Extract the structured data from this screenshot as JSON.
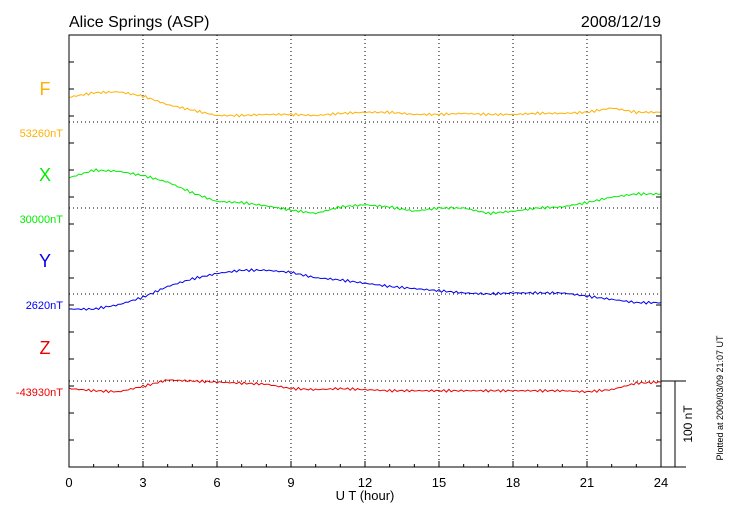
{
  "chart_data": {
    "type": "line",
    "title": "Alice Springs (ASP)",
    "date": "2008/12/19",
    "xlabel": "U T (hour)",
    "xlim": [
      0,
      24
    ],
    "xticks": [
      "0",
      "3",
      "6",
      "9",
      "12",
      "15",
      "18",
      "21",
      "24"
    ],
    "scale_bar_label": "100 nT",
    "scale_bar_nT": 100,
    "footer_note": "Plotted at 2009/03/09 21:07 UT",
    "panel_span_nT": 100,
    "x": [
      0,
      1,
      2,
      3,
      4,
      5,
      6,
      7,
      8,
      9,
      10,
      11,
      12,
      13,
      14,
      15,
      16,
      17,
      18,
      19,
      20,
      21,
      22,
      23,
      24
    ],
    "series": [
      {
        "name": "F",
        "baseline_label": "53260nT",
        "baseline_nT": 53260,
        "color": "#ffb000",
        "offset_nT": [
          23,
          27,
          28,
          24,
          16,
          11,
          6,
          6,
          7,
          7,
          6,
          8,
          9,
          9,
          7,
          7,
          8,
          7,
          7,
          8,
          8,
          9,
          13,
          9,
          9
        ]
      },
      {
        "name": "X",
        "baseline_label": "30000nT",
        "baseline_nT": 30000,
        "color": "#00ee00",
        "offset_nT": [
          28,
          35,
          34,
          30,
          24,
          14,
          6,
          5,
          2,
          -2,
          -5,
          1,
          3,
          1,
          -3,
          0,
          0,
          -5,
          -3,
          0,
          1,
          5,
          10,
          13,
          13
        ]
      },
      {
        "name": "Y",
        "baseline_label": "2620nT",
        "baseline_nT": 2620,
        "color": "#0000ee",
        "offset_nT": [
          -14,
          -14,
          -10,
          -3,
          7,
          14,
          19,
          22,
          22,
          20,
          15,
          13,
          10,
          7,
          5,
          3,
          1,
          0,
          1,
          1,
          1,
          -2,
          -5,
          -8,
          -8
        ]
      },
      {
        "name": "Z",
        "baseline_label": "-43930nT",
        "baseline_nT": -43930,
        "color": "#ee0000",
        "offset_nT": [
          -7,
          -9,
          -10,
          -5,
          1,
          0,
          -1,
          -2,
          -3,
          -7,
          -8,
          -7,
          -8,
          -9,
          -9,
          -9,
          -9,
          -9,
          -9,
          -9,
          -9,
          -10,
          -8,
          -2,
          -1
        ]
      }
    ]
  }
}
